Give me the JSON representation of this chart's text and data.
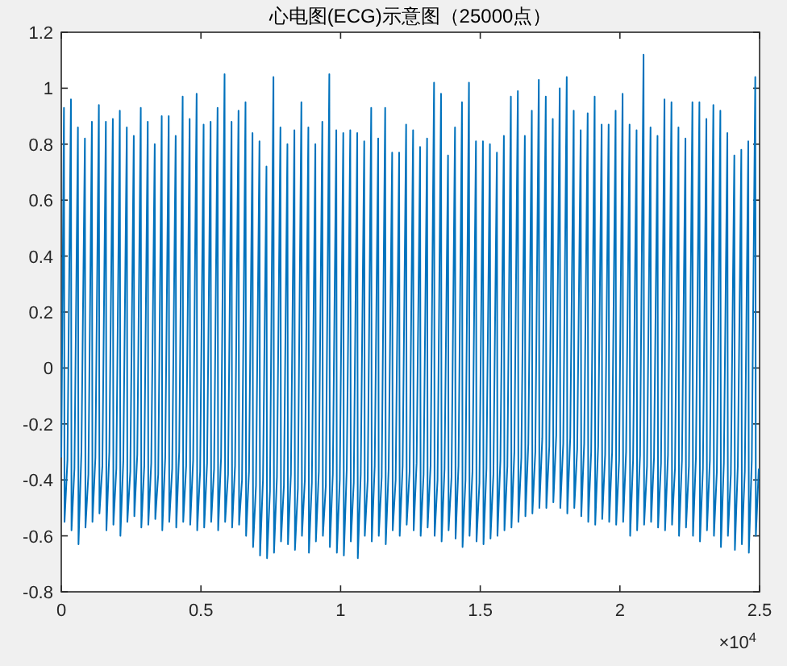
{
  "chart_data": {
    "type": "line",
    "title": "心电图(ECG)示意图（25000点）",
    "xlim": [
      0,
      2.5
    ],
    "ylim": [
      -0.8,
      1.2
    ],
    "xticks": [
      0,
      0.5,
      1,
      1.5,
      2,
      2.5
    ],
    "yticks": [
      -0.8,
      -0.6,
      -0.4,
      -0.2,
      0,
      0.2,
      0.4,
      0.6,
      0.8,
      1,
      1.2
    ],
    "annotations": [
      "×10$^{4}$"
    ],
    "grid": false,
    "line_style": "solid",
    "marker": "none",
    "series": [
      {
        "color": "#0072bd",
        "x": [
          0,
          0.0096,
          0.0116,
          0.0221,
          0.0346,
          0.0366,
          0.0471,
          0.0596,
          0.0616,
          0.0721,
          0.0846,
          0.0866,
          0.0971,
          0.1096,
          0.1116,
          0.1221,
          0.1346,
          0.1366,
          0.1471,
          0.1596,
          0.1616,
          0.1721,
          0.1846,
          0.1866,
          0.1971,
          0.2096,
          0.2116,
          0.2221,
          0.2346,
          0.2366,
          0.2471,
          0.2596,
          0.2616,
          0.2721,
          0.2846,
          0.2866,
          0.2971,
          0.3096,
          0.3116,
          0.3221,
          0.3346,
          0.3366,
          0.3471,
          0.3596,
          0.3616,
          0.3721,
          0.3846,
          0.3866,
          0.3971,
          0.4096,
          0.4116,
          0.4221,
          0.4346,
          0.4366,
          0.4471,
          0.4596,
          0.4616,
          0.4721,
          0.4846,
          0.4866,
          0.4971,
          0.5096,
          0.5116,
          0.5221,
          0.5346,
          0.5366,
          0.5471,
          0.5596,
          0.5616,
          0.5721,
          0.5846,
          0.5866,
          0.5971,
          0.6096,
          0.6116,
          0.6221,
          0.6346,
          0.6366,
          0.6471,
          0.6596,
          0.6616,
          0.6721,
          0.6846,
          0.6866,
          0.6971,
          0.7096,
          0.7116,
          0.7221,
          0.7346,
          0.7366,
          0.7471,
          0.7596,
          0.7616,
          0.7721,
          0.7846,
          0.7866,
          0.7971,
          0.8096,
          0.8116,
          0.8221,
          0.8346,
          0.8366,
          0.8471,
          0.8596,
          0.8616,
          0.8721,
          0.8846,
          0.8866,
          0.8971,
          0.9096,
          0.9116,
          0.9221,
          0.9346,
          0.9366,
          0.9471,
          0.9596,
          0.9616,
          0.9721,
          0.9846,
          0.9866,
          0.9971,
          1.0096,
          1.0116,
          1.0221,
          1.0346,
          1.0366,
          1.0471,
          1.0596,
          1.0616,
          1.0721,
          1.0846,
          1.0866,
          1.0971,
          1.1096,
          1.1116,
          1.1221,
          1.1346,
          1.1366,
          1.1471,
          1.1596,
          1.1616,
          1.1721,
          1.1846,
          1.1866,
          1.1971,
          1.2096,
          1.2116,
          1.2221,
          1.2346,
          1.2366,
          1.2471,
          1.2596,
          1.2616,
          1.2721,
          1.2846,
          1.2866,
          1.2971,
          1.3096,
          1.3116,
          1.3221,
          1.3346,
          1.3366,
          1.3471,
          1.3596,
          1.3616,
          1.3721,
          1.3846,
          1.3866,
          1.3971,
          1.4096,
          1.4116,
          1.4221,
          1.4346,
          1.4366,
          1.4471,
          1.4596,
          1.4616,
          1.4721,
          1.4846,
          1.4866,
          1.4971,
          1.5096,
          1.5116,
          1.5221,
          1.5346,
          1.5366,
          1.5471,
          1.5596,
          1.5616,
          1.5721,
          1.5846,
          1.5866,
          1.5971,
          1.6096,
          1.6116,
          1.6221,
          1.6346,
          1.6366,
          1.6471,
          1.6596,
          1.6616,
          1.6721,
          1.6846,
          1.6866,
          1.6971,
          1.7096,
          1.7116,
          1.7221,
          1.7346,
          1.7366,
          1.7471,
          1.7596,
          1.7616,
          1.7721,
          1.7846,
          1.7866,
          1.7971,
          1.8096,
          1.8116,
          1.8221,
          1.8346,
          1.8366,
          1.8471,
          1.8596,
          1.8616,
          1.8721,
          1.8846,
          1.8866,
          1.8971,
          1.9096,
          1.9116,
          1.9221,
          1.9346,
          1.9366,
          1.9471,
          1.9596,
          1.9616,
          1.9721,
          1.9846,
          1.9866,
          1.9971,
          2.0096,
          2.0116,
          2.0221,
          2.0346,
          2.0366,
          2.0471,
          2.0596,
          2.0616,
          2.0721,
          2.0846,
          2.0866,
          2.0971,
          2.1096,
          2.1116,
          2.1221,
          2.1346,
          2.1366,
          2.1471,
          2.1596,
          2.1616,
          2.1721,
          2.1846,
          2.1866,
          2.1971,
          2.2096,
          2.2116,
          2.2221,
          2.2346,
          2.2366,
          2.2471,
          2.2596,
          2.2616,
          2.2721,
          2.2846,
          2.2866,
          2.2971,
          2.3096,
          2.3116,
          2.3221,
          2.3346,
          2.3366,
          2.3471,
          2.3596,
          2.3616,
          2.3721,
          2.3846,
          2.3866,
          2.3971,
          2.4096,
          2.4116,
          2.4221,
          2.4346,
          2.4366,
          2.4471,
          2.4596,
          2.4616,
          2.4721,
          2.4846,
          2.4866,
          2.4971
        ],
        "values": [
          -0.32,
          0.93,
          -0.55,
          -0.33,
          0.96,
          -0.58,
          -0.36,
          0.86,
          -0.63,
          -0.3,
          0.82,
          -0.57,
          -0.38,
          0.88,
          -0.55,
          -0.32,
          0.94,
          -0.52,
          -0.35,
          0.88,
          -0.58,
          -0.3,
          0.89,
          -0.56,
          -0.36,
          0.92,
          -0.6,
          -0.33,
          0.86,
          -0.55,
          -0.37,
          0.83,
          -0.53,
          -0.31,
          0.93,
          -0.57,
          -0.35,
          0.88,
          -0.56,
          -0.34,
          0.8,
          -0.54,
          -0.38,
          0.9,
          -0.58,
          -0.32,
          0.9,
          -0.55,
          -0.36,
          0.83,
          -0.57,
          -0.3,
          0.97,
          -0.55,
          -0.35,
          0.89,
          -0.56,
          -0.33,
          0.98,
          -0.58,
          -0.37,
          0.87,
          -0.57,
          -0.34,
          0.88,
          -0.55,
          -0.36,
          0.93,
          -0.58,
          -0.32,
          1.05,
          -0.55,
          -0.38,
          0.88,
          -0.57,
          -0.35,
          0.92,
          -0.56,
          -0.4,
          0.95,
          -0.6,
          -0.37,
          0.84,
          -0.64,
          -0.42,
          0.81,
          -0.67,
          -0.4,
          0.72,
          -0.68,
          -0.44,
          1.04,
          -0.66,
          -0.39,
          0.86,
          -0.62,
          -0.42,
          0.8,
          -0.63,
          -0.38,
          0.85,
          -0.65,
          -0.43,
          0.95,
          -0.6,
          -0.4,
          0.86,
          -0.66,
          -0.41,
          0.8,
          -0.62,
          -0.37,
          0.88,
          -0.6,
          -0.42,
          1.05,
          -0.64,
          -0.38,
          0.85,
          -0.66,
          -0.4,
          0.84,
          -0.67,
          -0.36,
          0.85,
          -0.62,
          -0.41,
          0.84,
          -0.68,
          -0.38,
          0.81,
          -0.6,
          -0.4,
          0.93,
          -0.62,
          -0.35,
          0.82,
          -0.6,
          -0.39,
          0.93,
          -0.63,
          -0.36,
          0.77,
          -0.58,
          -0.4,
          0.77,
          -0.6,
          -0.35,
          0.87,
          -0.56,
          -0.37,
          0.85,
          -0.58,
          -0.34,
          0.79,
          -0.6,
          -0.38,
          0.82,
          -0.57,
          -0.35,
          1.02,
          -0.6,
          -0.4,
          0.98,
          -0.62,
          -0.36,
          0.76,
          -0.58,
          -0.39,
          0.86,
          -0.61,
          -0.35,
          0.95,
          -0.64,
          -0.4,
          1.02,
          -0.6,
          -0.37,
          0.81,
          -0.62,
          -0.41,
          0.81,
          -0.63,
          -0.36,
          0.8,
          -0.61,
          -0.38,
          0.77,
          -0.6,
          -0.33,
          0.83,
          -0.58,
          -0.35,
          0.97,
          -0.57,
          -0.3,
          0.99,
          -0.55,
          -0.32,
          0.83,
          -0.53,
          -0.27,
          0.92,
          -0.52,
          -0.3,
          1.03,
          -0.5,
          -0.25,
          0.97,
          -0.5,
          -0.28,
          0.89,
          -0.48,
          -0.24,
          1.0,
          -0.5,
          -0.27,
          1.04,
          -0.52,
          -0.25,
          0.92,
          -0.5,
          -0.29,
          0.85,
          -0.53,
          -0.27,
          0.91,
          -0.55,
          -0.3,
          0.97,
          -0.56,
          -0.28,
          0.87,
          -0.54,
          -0.31,
          0.87,
          -0.55,
          -0.3,
          0.92,
          -0.56,
          -0.33,
          0.98,
          -0.55,
          -0.3,
          0.87,
          -0.6,
          -0.33,
          0.85,
          -0.58,
          -0.31,
          1.12,
          -0.56,
          -0.35,
          0.86,
          -0.55,
          -0.32,
          0.83,
          -0.57,
          -0.34,
          0.96,
          -0.58,
          -0.31,
          0.95,
          -0.56,
          -0.36,
          0.86,
          -0.6,
          -0.33,
          0.82,
          -0.57,
          -0.35,
          0.95,
          -0.6,
          -0.32,
          0.95,
          -0.62,
          -0.36,
          0.89,
          -0.58,
          -0.33,
          0.94,
          -0.6,
          -0.37,
          0.92,
          -0.64,
          -0.34,
          0.84,
          -0.6,
          -0.38,
          0.76,
          -0.65,
          -0.35,
          0.78,
          -0.63,
          -0.37,
          0.81,
          -0.66,
          -0.33,
          1.04,
          -0.6,
          -0.36
        ]
      }
    ]
  }
}
